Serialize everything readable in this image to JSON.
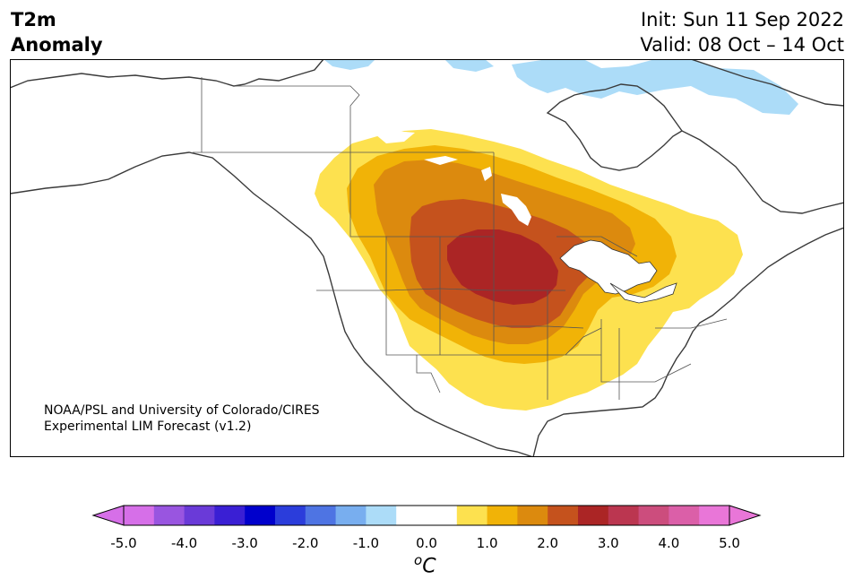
{
  "title": {
    "line1": "T2m",
    "line2": "Anomaly"
  },
  "init": "Init: Sun 11 Sep 2022",
  "valid": "Valid: 08 Oct – 14 Oct",
  "credit": {
    "line1": "NOAA/PSL and University of Colorado/CIRES",
    "line2": "Experimental LIM Forecast (v1.2)"
  },
  "colorbar": {
    "unit_main": "C",
    "unit_sup": "o",
    "ticks": [
      "-5.0",
      "-4.0",
      "-3.0",
      "-2.0",
      "-1.0",
      "0.0",
      "1.0",
      "2.0",
      "3.0",
      "4.0",
      "5.0"
    ],
    "colors": [
      "#d66fe8",
      "#9955e0",
      "#6a3ad8",
      "#3a1fd4",
      "#0000cc",
      "#2b3ddb",
      "#4e74e3",
      "#78aeef",
      "#acdcf8",
      "#ffffff",
      "#ffffff",
      "#fde14f",
      "#f1b307",
      "#dc8a0e",
      "#c5521d",
      "#ab2525",
      "#bb3650",
      "#cc4d7d",
      "#db5fa8",
      "#e976d8"
    ],
    "under_color": "#d66fe8",
    "over_color": "#e976d8"
  },
  "anomaly_colors": {
    "light_yellow": "#fde14f",
    "gold": "#f1b307",
    "orange": "#dc8a0e",
    "rust": "#c5521d",
    "dark_red": "#ab2525",
    "light_blue": "#acdcf8"
  }
}
